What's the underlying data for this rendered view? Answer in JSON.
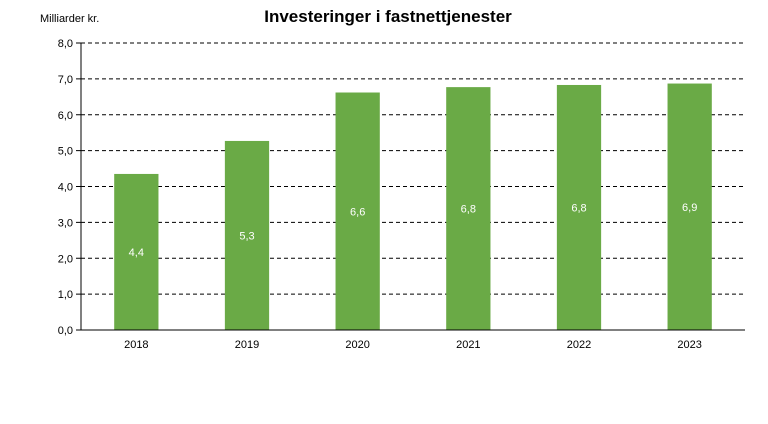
{
  "chart_data": {
    "type": "bar",
    "title": "Investeringer i fastnettjenester",
    "ylabel": "Milliarder kr.",
    "xlabel": "",
    "categories": [
      "2018",
      "2019",
      "2020",
      "2021",
      "2022",
      "2023"
    ],
    "values": [
      4.35,
      5.27,
      6.62,
      6.77,
      6.83,
      6.87
    ],
    "data_labels": [
      "4,4",
      "5,3",
      "6,6",
      "6,8",
      "6,8",
      "6,9"
    ],
    "ylim": [
      0,
      8
    ],
    "yticks": [
      "0,0",
      "1,0",
      "2,0",
      "3,0",
      "4,0",
      "5,0",
      "6,0",
      "7,0",
      "8,0"
    ],
    "grid": "dashed horizontal",
    "legend": "none",
    "bar_color": "#6aaa46"
  }
}
